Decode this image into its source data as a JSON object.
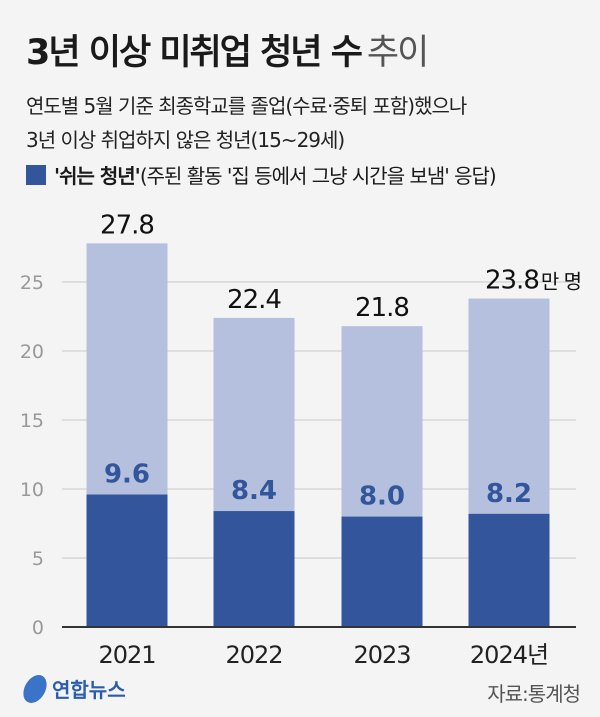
{
  "title": {
    "bold": "3년 이상 미취업 청년 수",
    "light": "추이"
  },
  "subtitle": [
    "연도별 5월 기준 최종학교를 졸업(수료·중퇴 포함)했으나",
    "3년 이상 취업하지 않은 청년(15~29세)"
  ],
  "legend": {
    "bold": "'쉬는 청년'",
    "rest": "(주된 활동 '집 등에서 그냥 시간을 보냄' 응답)"
  },
  "colors": {
    "total": "#b4c0dd",
    "resting": "#33559b",
    "axis": "#333333",
    "grid": "#c8c8c8"
  },
  "unit": "만 명",
  "source": "자료:통계청",
  "logo": "연합뉴스",
  "chart_data": {
    "type": "bar",
    "stacked": false,
    "categories": [
      "2021",
      "2022",
      "2023",
      "2024년"
    ],
    "series": [
      {
        "name": "",
        "values": [
          27.8,
          22.4,
          21.8,
          23.8
        ]
      },
      {
        "name": "'쉬는 청년'",
        "values": [
          9.6,
          8.4,
          8.0,
          8.2
        ]
      }
    ],
    "total_labels": [
      "27.8",
      "22.4",
      "21.8",
      "23.8"
    ],
    "resting_labels": [
      "9.6",
      "8.4",
      "8.0",
      "8.2"
    ],
    "yticks": [
      "0",
      "5",
      "10",
      "15",
      "20",
      "25"
    ],
    "ylim": [
      0,
      27.8
    ],
    "grid": true
  }
}
